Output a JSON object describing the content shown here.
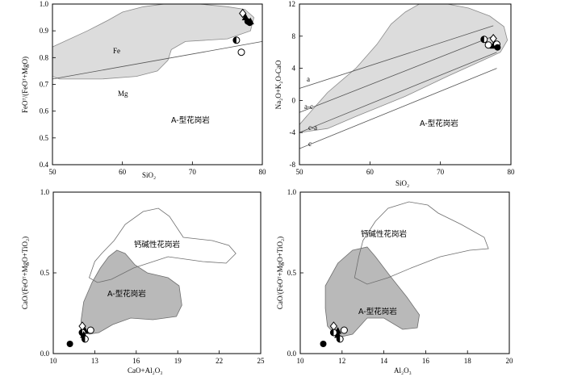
{
  "chart_data": [
    {
      "type": "scatter",
      "id": "A",
      "title": "",
      "xlabel": "SiO₂",
      "ylabel": "FeOᵀ/(FeOᵀ+MgO)",
      "xlim": [
        50,
        80
      ],
      "ylim": [
        0.4,
        1.0
      ],
      "xticks": [
        50,
        60,
        70,
        80
      ],
      "yticks": [
        0.4,
        0.5,
        0.6,
        0.7,
        0.8,
        0.9,
        1.0
      ],
      "field": {
        "label": "A-型花岗岩",
        "polygon": [
          [
            50,
            0.84
          ],
          [
            55,
            0.9
          ],
          [
            58,
            0.94
          ],
          [
            60,
            0.97
          ],
          [
            63,
            0.99
          ],
          [
            66,
            1.0
          ],
          [
            71,
            1.0
          ],
          [
            75,
            0.99
          ],
          [
            77.5,
            0.98
          ],
          [
            78.8,
            0.95
          ],
          [
            78.3,
            0.9
          ],
          [
            75,
            0.87
          ],
          [
            69,
            0.86
          ],
          [
            67,
            0.83
          ],
          [
            66.5,
            0.79
          ],
          [
            65,
            0.75
          ],
          [
            62,
            0.73
          ],
          [
            57,
            0.72
          ],
          [
            51,
            0.72
          ],
          [
            50,
            0.73
          ]
        ]
      },
      "divider": {
        "points": [
          [
            50,
            0.72
          ],
          [
            80,
            0.86
          ]
        ],
        "label_above": "Fe",
        "label_below": "Mg"
      },
      "labels": [
        "Fe",
        "Mg"
      ],
      "points": [
        {
          "marker": "triangle",
          "x": 77.6,
          "y": 0.95
        },
        {
          "marker": "diamond",
          "x": 77.2,
          "y": 0.965
        },
        {
          "marker": "filled-circle",
          "x": 77.9,
          "y": 0.935
        },
        {
          "marker": "filled-circle",
          "x": 78.2,
          "y": 0.93
        },
        {
          "marker": "triangle",
          "x": 78.3,
          "y": 0.935
        },
        {
          "marker": "half-circle",
          "x": 76.3,
          "y": 0.865
        },
        {
          "marker": "open-circle",
          "x": 77.0,
          "y": 0.82
        }
      ]
    },
    {
      "type": "scatter",
      "id": "B",
      "title": "",
      "xlabel": "SiO₂",
      "ylabel": "Na₂O+K₂O-CaO",
      "xlim": [
        50,
        80
      ],
      "ylim": [
        -8,
        12
      ],
      "xticks": [
        50,
        60,
        70,
        80
      ],
      "yticks": [
        -8,
        -4,
        0,
        4,
        8,
        12
      ],
      "field": {
        "label": "A-型花岗岩",
        "polygon": [
          [
            50,
            -3
          ],
          [
            51,
            -2
          ],
          [
            54,
            1
          ],
          [
            58,
            4
          ],
          [
            61,
            7
          ],
          [
            63,
            9.5
          ],
          [
            65,
            11
          ],
          [
            67,
            12
          ],
          [
            71,
            12
          ],
          [
            74,
            11.5
          ],
          [
            77,
            10.5
          ],
          [
            79,
            9.2
          ],
          [
            79.5,
            7.5
          ],
          [
            78.5,
            6
          ],
          [
            76,
            5
          ],
          [
            71,
            3
          ],
          [
            65,
            0.5
          ],
          [
            58,
            -2
          ],
          [
            54,
            -3.5
          ],
          [
            50,
            -4
          ]
        ]
      },
      "lines": [
        {
          "label": "a",
          "points": [
            [
              50,
              1.5
            ],
            [
              77.5,
              9.3
            ]
          ]
        },
        {
          "label": "a-c",
          "points": [
            [
              50,
              -1.5
            ],
            [
              77.5,
              8.0
            ]
          ]
        },
        {
          "label": "c-a",
          "points": [
            [
              50,
              -4
            ],
            [
              78,
              6
            ]
          ]
        },
        {
          "label": "c",
          "points": [
            [
              50,
              -6
            ],
            [
              78,
              4
            ]
          ]
        }
      ],
      "points": [
        {
          "marker": "diamond",
          "x": 77.5,
          "y": 7.7
        },
        {
          "marker": "half-circle",
          "x": 76.2,
          "y": 7.6
        },
        {
          "marker": "open-circle",
          "x": 76.8,
          "y": 6.9
        },
        {
          "marker": "triangle",
          "x": 77.5,
          "y": 6.8
        },
        {
          "marker": "open-circle",
          "x": 78.0,
          "y": 7.0
        },
        {
          "marker": "filled-circle",
          "x": 78.1,
          "y": 6.6
        }
      ]
    },
    {
      "type": "scatter",
      "id": "C",
      "title": "",
      "xlabel": "CaO+Al₂O₃",
      "ylabel": "CaO/(FeOᵀ+MgO+TiO₂)",
      "xlim": [
        10,
        25
      ],
      "ylim": [
        0,
        1.0
      ],
      "xticks": [
        10,
        13,
        16,
        19,
        22,
        25
      ],
      "yticks": [
        0.0,
        0.5,
        1.0
      ],
      "calc_field": {
        "label": "钙碱性花岗岩",
        "polygon": [
          [
            13.5,
            0.62
          ],
          [
            14.4,
            0.7
          ],
          [
            15.2,
            0.8
          ],
          [
            16.5,
            0.88
          ],
          [
            17.6,
            0.9
          ],
          [
            18.4,
            0.85
          ],
          [
            19.4,
            0.72
          ],
          [
            21.5,
            0.7
          ],
          [
            22.7,
            0.67
          ],
          [
            23.2,
            0.62
          ],
          [
            22.5,
            0.56
          ],
          [
            20.8,
            0.57
          ],
          [
            18.3,
            0.6
          ],
          [
            15.8,
            0.53
          ],
          [
            14.2,
            0.46
          ],
          [
            13.2,
            0.44
          ],
          [
            12.6,
            0.47
          ],
          [
            13.0,
            0.57
          ]
        ]
      },
      "a_field": {
        "label": "A-型花岗岩",
        "polygon": [
          [
            12.0,
            0.2
          ],
          [
            12.2,
            0.32
          ],
          [
            12.8,
            0.44
          ],
          [
            13.4,
            0.53
          ],
          [
            14.0,
            0.6
          ],
          [
            14.6,
            0.64
          ],
          [
            15.2,
            0.62
          ],
          [
            15.9,
            0.55
          ],
          [
            16.8,
            0.5
          ],
          [
            18.3,
            0.47
          ],
          [
            19.1,
            0.42
          ],
          [
            19.3,
            0.3
          ],
          [
            18.9,
            0.23
          ],
          [
            17.2,
            0.21
          ],
          [
            15.6,
            0.22
          ],
          [
            14.3,
            0.18
          ],
          [
            13.3,
            0.13
          ],
          [
            12.6,
            0.12
          ],
          [
            12.1,
            0.16
          ]
        ]
      },
      "points": [
        {
          "marker": "filled-circle",
          "x": 11.2,
          "y": 0.06
        },
        {
          "marker": "diamond",
          "x": 12.1,
          "y": 0.17
        },
        {
          "marker": "triangle",
          "x": 12.3,
          "y": 0.14
        },
        {
          "marker": "half-circle",
          "x": 12.1,
          "y": 0.13
        },
        {
          "marker": "open-circle",
          "x": 12.7,
          "y": 0.145
        },
        {
          "marker": "triangle",
          "x": 12.2,
          "y": 0.115
        },
        {
          "marker": "half-circle",
          "x": 12.3,
          "y": 0.09
        }
      ]
    },
    {
      "type": "scatter",
      "id": "D",
      "title": "",
      "xlabel": "Al₂O₃",
      "ylabel": "CaO/(FeOᵀ+MgO+TiO₂)",
      "xlim": [
        10,
        20
      ],
      "ylim": [
        0,
        1.0
      ],
      "xticks": [
        10,
        12,
        14,
        16,
        18,
        20
      ],
      "yticks": [
        0.0,
        0.5,
        1.0
      ],
      "calc_field": {
        "label": "钙碱性花岗岩",
        "polygon": [
          [
            13.0,
            0.7
          ],
          [
            13.6,
            0.82
          ],
          [
            14.2,
            0.9
          ],
          [
            15.2,
            0.94
          ],
          [
            16.1,
            0.92
          ],
          [
            16.6,
            0.87
          ],
          [
            17.7,
            0.8
          ],
          [
            18.8,
            0.72
          ],
          [
            19.0,
            0.65
          ],
          [
            18.1,
            0.64
          ],
          [
            16.7,
            0.6
          ],
          [
            15.3,
            0.53
          ],
          [
            14.2,
            0.47
          ],
          [
            13.2,
            0.43
          ],
          [
            12.6,
            0.47
          ],
          [
            12.8,
            0.6
          ]
        ]
      },
      "a_field": {
        "label": "A-型花岗岩",
        "polygon": [
          [
            11.2,
            0.28
          ],
          [
            11.2,
            0.42
          ],
          [
            11.8,
            0.56
          ],
          [
            12.5,
            0.64
          ],
          [
            13.2,
            0.66
          ],
          [
            13.6,
            0.6
          ],
          [
            14.3,
            0.48
          ],
          [
            15.1,
            0.35
          ],
          [
            15.7,
            0.24
          ],
          [
            15.6,
            0.16
          ],
          [
            14.9,
            0.15
          ],
          [
            14.0,
            0.22
          ],
          [
            13.2,
            0.22
          ],
          [
            12.5,
            0.12
          ],
          [
            11.8,
            0.1
          ],
          [
            11.3,
            0.17
          ]
        ]
      },
      "points": [
        {
          "marker": "filled-circle",
          "x": 11.1,
          "y": 0.06
        },
        {
          "marker": "diamond",
          "x": 11.6,
          "y": 0.17
        },
        {
          "marker": "triangle",
          "x": 11.8,
          "y": 0.14
        },
        {
          "marker": "half-circle",
          "x": 11.6,
          "y": 0.13
        },
        {
          "marker": "open-circle",
          "x": 12.1,
          "y": 0.145
        },
        {
          "marker": "triangle",
          "x": 11.8,
          "y": 0.115
        },
        {
          "marker": "half-circle",
          "x": 11.9,
          "y": 0.09
        }
      ]
    }
  ]
}
